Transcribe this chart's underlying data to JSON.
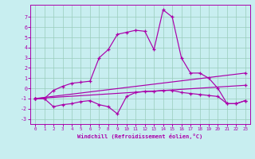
{
  "xlabel": "Windchill (Refroidissement éolien,°C)",
  "background_color": "#c8eef0",
  "grid_color": "#99ccbb",
  "line_color": "#aa00aa",
  "xlim": [
    -0.5,
    23.5
  ],
  "ylim": [
    -3.5,
    8.2
  ],
  "xticks": [
    0,
    1,
    2,
    3,
    4,
    5,
    6,
    7,
    8,
    9,
    10,
    11,
    12,
    13,
    14,
    15,
    16,
    17,
    18,
    19,
    20,
    21,
    22,
    23
  ],
  "yticks": [
    -3,
    -2,
    -1,
    0,
    1,
    2,
    3,
    4,
    5,
    6,
    7
  ],
  "line1_x": [
    0,
    1,
    2,
    3,
    4,
    5,
    6,
    7,
    8,
    9,
    10,
    11,
    12,
    13,
    14,
    15,
    16,
    17,
    18,
    19,
    20,
    21,
    22,
    23
  ],
  "line1_y": [
    -1.0,
    -1.0,
    -0.2,
    0.2,
    0.5,
    0.6,
    0.7,
    3.0,
    3.8,
    5.3,
    5.5,
    5.7,
    5.6,
    3.8,
    7.7,
    7.0,
    3.0,
    1.5,
    1.5,
    1.0,
    0.0,
    -1.5,
    -1.5,
    -1.2
  ],
  "line2_x": [
    0,
    1,
    2,
    3,
    4,
    5,
    6,
    7,
    8,
    9,
    10,
    11,
    12,
    13,
    14,
    15,
    16,
    17,
    18,
    19,
    20,
    21,
    22,
    23
  ],
  "line2_y": [
    -1.0,
    -1.0,
    -1.8,
    -1.6,
    -1.5,
    -1.3,
    -1.2,
    -1.6,
    -1.8,
    -2.5,
    -0.8,
    -0.4,
    -0.3,
    -0.3,
    -0.2,
    -0.2,
    -0.4,
    -0.5,
    -0.6,
    -0.7,
    -0.8,
    -1.5,
    -1.5,
    -1.2
  ],
  "line3_x": [
    0,
    23
  ],
  "line3_y": [
    -1.0,
    1.5
  ],
  "line4_x": [
    0,
    23
  ],
  "line4_y": [
    -1.0,
    0.3
  ]
}
